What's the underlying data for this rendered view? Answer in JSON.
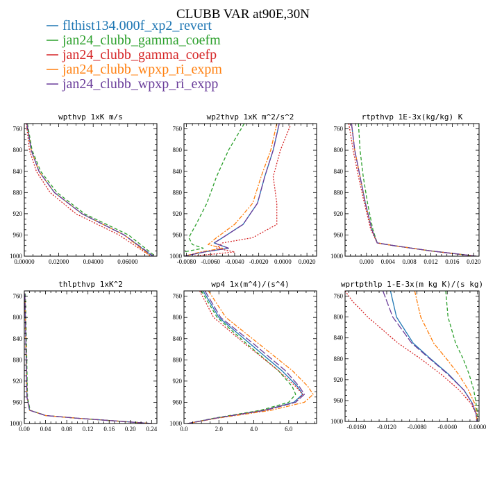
{
  "title": "CLUBB VAR at90E,30N",
  "colors": {
    "flthist": "#1f77b4",
    "gamma_coefm": "#2ca02c",
    "gamma_coefp": "#d62728",
    "wpxp_ri_expm": "#ff7f0e",
    "wpxp_ri_expp": "#6a3d9a"
  },
  "legend": [
    {
      "key": "flthist",
      "label": "flthist134.000f_xp2_revert"
    },
    {
      "key": "gamma_coefm",
      "label": "jan24_clubb_gamma_coefm"
    },
    {
      "key": "gamma_coefp",
      "label": "jan24_clubb_gamma_coefp"
    },
    {
      "key": "wpxp_ri_expm",
      "label": "jan24_clubb_wpxp_ri_expm"
    },
    {
      "key": "wpxp_ri_expp",
      "label": "jan24_clubb_wpxp_ri_expp"
    }
  ],
  "chart_data": [
    {
      "type": "line",
      "title": "wpthvp  1xK m/s",
      "xlim": [
        0,
        0.077
      ],
      "ylim": [
        750,
        1000
      ],
      "xticks": [
        0,
        0.02,
        0.04,
        0.06
      ],
      "xtick_labels": [
        "0.00000",
        "0.02000",
        "0.04000",
        "0.06000"
      ],
      "yticks": [
        760,
        800,
        840,
        880,
        920,
        960,
        1000
      ],
      "series": [
        {
          "key": "flthist",
          "y": [
            750,
            800,
            840,
            880,
            920,
            960,
            1000
          ],
          "x": [
            0.0015,
            0.004,
            0.0085,
            0.0175,
            0.0335,
            0.058,
            0.0745
          ]
        },
        {
          "key": "gamma_coefm",
          "y": [
            750,
            800,
            840,
            880,
            920,
            960,
            1000
          ],
          "x": [
            0.0018,
            0.0045,
            0.0095,
            0.019,
            0.035,
            0.0605,
            0.076
          ]
        },
        {
          "key": "gamma_coefp",
          "y": [
            750,
            800,
            840,
            880,
            920,
            960,
            1000
          ],
          "x": [
            0.0012,
            0.003,
            0.007,
            0.015,
            0.03,
            0.055,
            0.0735
          ]
        },
        {
          "key": "wpxp_ri_expm",
          "y": [
            750,
            800,
            840,
            880,
            920,
            960,
            1000
          ],
          "x": [
            0.0015,
            0.004,
            0.0085,
            0.0175,
            0.0335,
            0.058,
            0.0735
          ]
        },
        {
          "key": "wpxp_ri_expp",
          "y": [
            750,
            800,
            840,
            880,
            920,
            960,
            1000
          ],
          "x": [
            0.0015,
            0.004,
            0.0085,
            0.0175,
            0.0335,
            0.058,
            0.075
          ]
        }
      ]
    },
    {
      "type": "line",
      "title": "wp2thvp  1xK m^2/s^2",
      "xlim": [
        -0.0082,
        0.0028
      ],
      "ylim": [
        750,
        1000
      ],
      "xticks": [
        -0.008,
        -0.006,
        -0.004,
        -0.002,
        0,
        0.002
      ],
      "xtick_labels": [
        "-0.0080",
        "-0.0060",
        "-0.0040",
        "-0.0020",
        "0.0000",
        "0.0020"
      ],
      "yticks": [
        760,
        800,
        840,
        880,
        920,
        960,
        1000
      ],
      "series": [
        {
          "key": "flthist",
          "y": [
            750,
            800,
            850,
            900,
            940,
            965,
            975,
            985,
            992,
            1000
          ],
          "x": [
            -0.0003,
            -0.0008,
            -0.0015,
            -0.0021,
            -0.0033,
            -0.005,
            -0.0057,
            -0.0045,
            -0.0065,
            -0.0082
          ]
        },
        {
          "key": "gamma_coefm",
          "y": [
            750,
            800,
            850,
            900,
            940,
            965,
            978,
            985,
            992,
            1000
          ],
          "x": [
            -0.0032,
            -0.0045,
            -0.0055,
            -0.0063,
            -0.0072,
            -0.0078,
            -0.0075,
            -0.0066,
            -0.0082,
            -0.0082
          ]
        },
        {
          "key": "gamma_coefp",
          "y": [
            755,
            800,
            850,
            900,
            940,
            965,
            975,
            985,
            992,
            1000
          ],
          "x": [
            0.0006,
            -0.0002,
            -0.0008,
            -0.0005,
            -0.0005,
            -0.0025,
            -0.005,
            -0.0055,
            -0.004,
            -0.0075
          ]
        },
        {
          "key": "wpxp_ri_expm",
          "y": [
            750,
            800,
            850,
            900,
            940,
            965,
            978,
            985,
            992,
            1000
          ],
          "x": [
            -0.0005,
            -0.001,
            -0.0018,
            -0.0025,
            -0.004,
            -0.0055,
            -0.0062,
            -0.005,
            -0.0068,
            -0.0082
          ]
        },
        {
          "key": "wpxp_ri_expp",
          "y": [
            750,
            800,
            850,
            900,
            940,
            965,
            975,
            985,
            992,
            1000
          ],
          "x": [
            -0.0003,
            -0.0008,
            -0.0015,
            -0.0021,
            -0.0033,
            -0.005,
            -0.0057,
            -0.0045,
            -0.0065,
            -0.0082
          ]
        }
      ]
    },
    {
      "type": "line",
      "title": "rtpthvp  1E-3x(kg/kg) K",
      "xlim": [
        -0.004,
        0.021
      ],
      "ylim": [
        750,
        1000
      ],
      "xticks": [
        0,
        0.004,
        0.008,
        0.012,
        0.016,
        0.02
      ],
      "xtick_labels": [
        "0.000",
        "0.004",
        "0.008",
        "0.012",
        "0.016",
        "0.020"
      ],
      "yticks": [
        760,
        800,
        840,
        880,
        920,
        960,
        1000
      ],
      "series": [
        {
          "key": "flthist",
          "y": [
            750,
            800,
            850,
            900,
            950,
            975,
            980,
            990,
            1000
          ],
          "x": [
            -0.0028,
            -0.0022,
            -0.0012,
            -0.0002,
            0.001,
            0.002,
            0.005,
            0.012,
            0.0205
          ]
        },
        {
          "key": "gamma_coefm",
          "y": [
            750,
            800,
            850,
            900,
            950,
            975,
            980,
            990,
            1000
          ],
          "x": [
            -0.0015,
            -0.0012,
            -0.0006,
            0.0002,
            0.0012,
            0.002,
            0.005,
            0.012,
            0.0205
          ]
        },
        {
          "key": "gamma_coefp",
          "y": [
            750,
            800,
            850,
            900,
            950,
            975,
            980,
            990,
            1000
          ],
          "x": [
            -0.0033,
            -0.0025,
            -0.0015,
            -0.0004,
            0.0008,
            0.002,
            0.005,
            0.012,
            0.0205
          ]
        },
        {
          "key": "wpxp_ri_expm",
          "y": [
            750,
            800,
            850,
            900,
            950,
            975,
            980,
            990,
            1000
          ],
          "x": [
            -0.0028,
            -0.0022,
            -0.0012,
            -0.0002,
            0.001,
            0.002,
            0.005,
            0.012,
            0.0205
          ]
        },
        {
          "key": "wpxp_ri_expp",
          "y": [
            750,
            800,
            850,
            900,
            950,
            975,
            980,
            990,
            1000
          ],
          "x": [
            -0.0028,
            -0.0022,
            -0.0012,
            -0.0002,
            0.001,
            0.002,
            0.005,
            0.012,
            0.0205
          ]
        }
      ]
    },
    {
      "type": "line",
      "title": "thlpthvp  1xK^2",
      "xlim": [
        0,
        0.25
      ],
      "ylim": [
        750,
        1000
      ],
      "xticks": [
        0,
        0.04,
        0.08,
        0.12,
        0.16,
        0.2,
        0.24
      ],
      "xtick_labels": [
        "0.00",
        "0.04",
        "0.08",
        "0.12",
        "0.16",
        "0.20",
        "0.24"
      ],
      "yticks": [
        760,
        800,
        840,
        880,
        920,
        960,
        1000
      ],
      "series": [
        {
          "key": "flthist",
          "y": [
            755,
            850,
            950,
            975,
            985,
            990,
            995,
            1000
          ],
          "x": [
            0.001,
            0.003,
            0.005,
            0.01,
            0.04,
            0.1,
            0.17,
            0.24
          ]
        },
        {
          "key": "gamma_coefm",
          "y": [
            755,
            850,
            950,
            975,
            985,
            990,
            995,
            1000
          ],
          "x": [
            0.002,
            0.004,
            0.006,
            0.011,
            0.041,
            0.1,
            0.17,
            0.24
          ]
        },
        {
          "key": "gamma_coefp",
          "y": [
            755,
            850,
            950,
            975,
            985,
            990,
            995,
            1000
          ],
          "x": [
            0.001,
            0.003,
            0.005,
            0.01,
            0.04,
            0.1,
            0.17,
            0.24
          ]
        },
        {
          "key": "wpxp_ri_expm",
          "y": [
            755,
            850,
            950,
            975,
            985,
            990,
            995,
            1000
          ],
          "x": [
            0.001,
            0.003,
            0.005,
            0.01,
            0.04,
            0.1,
            0.17,
            0.24
          ]
        },
        {
          "key": "wpxp_ri_expp",
          "y": [
            755,
            850,
            950,
            975,
            985,
            990,
            995,
            1000
          ],
          "x": [
            0.001,
            0.003,
            0.005,
            0.01,
            0.04,
            0.1,
            0.17,
            0.24
          ]
        }
      ]
    },
    {
      "type": "line",
      "title": "wp4  1x(m^4)/(s^4)",
      "xlim": [
        0,
        7.6
      ],
      "ylim": [
        750,
        1000
      ],
      "xticks": [
        0,
        2,
        4,
        6
      ],
      "xtick_labels": [
        "0.0",
        "2.0",
        "4.0",
        "6.0"
      ],
      "yticks": [
        760,
        800,
        840,
        880,
        920,
        960,
        1000
      ],
      "series": [
        {
          "key": "flthist",
          "y": [
            750,
            800,
            850,
            900,
            930,
            945,
            960,
            975,
            990,
            1000
          ],
          "x": [
            1.1,
            2.0,
            3.8,
            5.6,
            6.5,
            6.8,
            6.3,
            4.6,
            1.8,
            0.2
          ]
        },
        {
          "key": "gamma_coefm",
          "y": [
            750,
            800,
            850,
            900,
            930,
            945,
            960,
            975,
            990,
            1000
          ],
          "x": [
            1.0,
            1.9,
            3.6,
            5.4,
            6.2,
            6.4,
            6.0,
            4.4,
            1.7,
            0.2
          ]
        },
        {
          "key": "gamma_coefp",
          "y": [
            750,
            800,
            850,
            900,
            930,
            945,
            960,
            975,
            990,
            1000
          ],
          "x": [
            0.9,
            1.7,
            3.5,
            5.4,
            6.4,
            6.8,
            6.4,
            4.6,
            1.8,
            0.2
          ]
        },
        {
          "key": "wpxp_ri_expm",
          "y": [
            750,
            800,
            850,
            900,
            930,
            945,
            960,
            975,
            990,
            1000
          ],
          "x": [
            1.4,
            2.4,
            4.3,
            6.2,
            7.1,
            7.4,
            6.9,
            5.0,
            1.9,
            0.2
          ]
        },
        {
          "key": "wpxp_ri_expp",
          "y": [
            750,
            800,
            850,
            900,
            930,
            945,
            960,
            975,
            990,
            1000
          ],
          "x": [
            1.2,
            2.1,
            4.0,
            5.8,
            6.6,
            6.9,
            6.4,
            4.7,
            1.8,
            0.2
          ]
        }
      ]
    },
    {
      "type": "line",
      "title": "wprtpthlp  1-E-3x(m kg K)/(s kg)",
      "xlim": [
        -0.0175,
        0.0002
      ],
      "ylim": [
        750,
        1000
      ],
      "xticks": [
        -0.016,
        -0.012,
        -0.008,
        -0.004,
        0
      ],
      "xtick_labels": [
        "-0.0160",
        "-0.0120",
        "-0.0080",
        "-0.0040",
        "0.0000"
      ],
      "yticks": [
        760,
        800,
        840,
        880,
        920,
        960,
        1000
      ],
      "series": [
        {
          "key": "flthist",
          "y": [
            750,
            800,
            850,
            880,
            910,
            940,
            965,
            985,
            995,
            1000
          ],
          "x": [
            -0.0115,
            -0.0107,
            -0.0085,
            -0.0062,
            -0.0038,
            -0.0018,
            -0.0007,
            -0.0002,
            -0.0001,
            -0.0001
          ]
        },
        {
          "key": "gamma_coefm",
          "y": [
            750,
            800,
            850,
            880,
            910,
            940,
            965,
            985,
            995,
            1000
          ],
          "x": [
            -0.0042,
            -0.0039,
            -0.0029,
            -0.0019,
            -0.0011,
            -0.0005,
            -0.0002,
            0,
            -0.0001,
            -0.0001
          ]
        },
        {
          "key": "gamma_coefp",
          "y": [
            750,
            770,
            800,
            850,
            880,
            910,
            940,
            965,
            985,
            1000
          ],
          "x": [
            -0.0175,
            -0.0165,
            -0.0145,
            -0.0105,
            -0.0075,
            -0.0048,
            -0.0024,
            -0.0009,
            -0.0002,
            -0.0001
          ]
        },
        {
          "key": "wpxp_ri_expm",
          "y": [
            750,
            800,
            850,
            880,
            910,
            940,
            965,
            985,
            995,
            1000
          ],
          "x": [
            -0.0083,
            -0.0075,
            -0.0058,
            -0.0041,
            -0.0025,
            -0.0012,
            -0.0004,
            -0.0001,
            -0.0001,
            -0.0001
          ]
        },
        {
          "key": "wpxp_ri_expp",
          "y": [
            750,
            800,
            850,
            880,
            910,
            940,
            965,
            985,
            995,
            1000
          ],
          "x": [
            -0.0125,
            -0.0112,
            -0.0087,
            -0.0063,
            -0.0039,
            -0.0018,
            -0.0007,
            -0.0002,
            -0.0001,
            -0.0001
          ]
        }
      ]
    }
  ]
}
